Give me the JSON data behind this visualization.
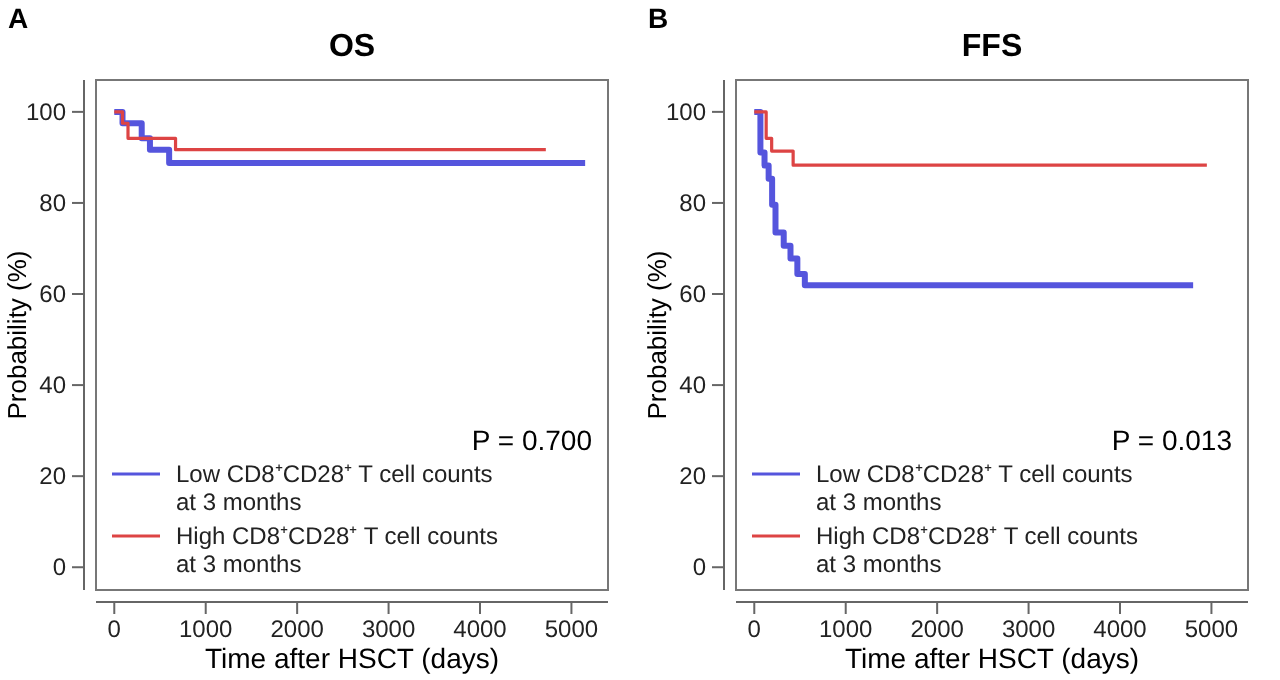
{
  "chart_data": [
    {
      "type": "step",
      "title": "OS",
      "xlabel": "Time after HSCT (days)",
      "ylabel": "Probability (%)",
      "annotations": [
        "A",
        "P = 0.700"
      ],
      "xlim": [
        -200,
        5400
      ],
      "ylim": [
        -5,
        107
      ],
      "xticks": [
        0,
        1000,
        2000,
        3000,
        4000,
        5000
      ],
      "yticks": [
        0,
        20,
        40,
        60,
        80,
        100
      ],
      "grid": false,
      "legend": "bottom left",
      "series": [
        {
          "name": "Low CD8⁺CD28⁺ T cell counts at 3 months",
          "color": "#5555dd",
          "x": [
            0,
            90,
            300,
            390,
            600,
            5150
          ],
          "values": [
            100,
            97.5,
            94.2,
            91.7,
            88.8,
            88.8
          ]
        },
        {
          "name": "High CD8⁺CD28⁺ T cell counts at 3 months",
          "color": "#dd4444",
          "x": [
            0,
            90,
            150,
            670,
            4720
          ],
          "values": [
            100,
            97.5,
            94.2,
            91.7,
            91.7
          ]
        }
      ]
    },
    {
      "type": "step",
      "title": "FFS",
      "xlabel": "Time after HSCT (days)",
      "ylabel": "Probability (%)",
      "annotations": [
        "B",
        "P = 0.013"
      ],
      "xlim": [
        -200,
        5400
      ],
      "ylim": [
        -5,
        107
      ],
      "xticks": [
        0,
        1000,
        2000,
        3000,
        4000,
        5000
      ],
      "yticks": [
        0,
        20,
        40,
        60,
        80,
        100
      ],
      "grid": false,
      "legend": "bottom left",
      "series": [
        {
          "name": "Low CD8⁺CD28⁺ T cell counts at 3 months",
          "color": "#5555dd",
          "x": [
            0,
            67,
            112,
            157,
            195,
            232,
            322,
            396,
            471,
            553,
            4800
          ],
          "values": [
            100,
            91.1,
            88.2,
            85.3,
            79.6,
            73.5,
            70.6,
            67.8,
            64.4,
            61.9,
            61.9
          ]
        },
        {
          "name": "High CD8⁺CD28⁺ T cell counts at 3 months",
          "color": "#dd4444",
          "x": [
            0,
            130,
            190,
            425,
            4950
          ],
          "values": [
            100,
            94.2,
            91.4,
            88.3,
            88.3
          ]
        }
      ]
    }
  ]
}
